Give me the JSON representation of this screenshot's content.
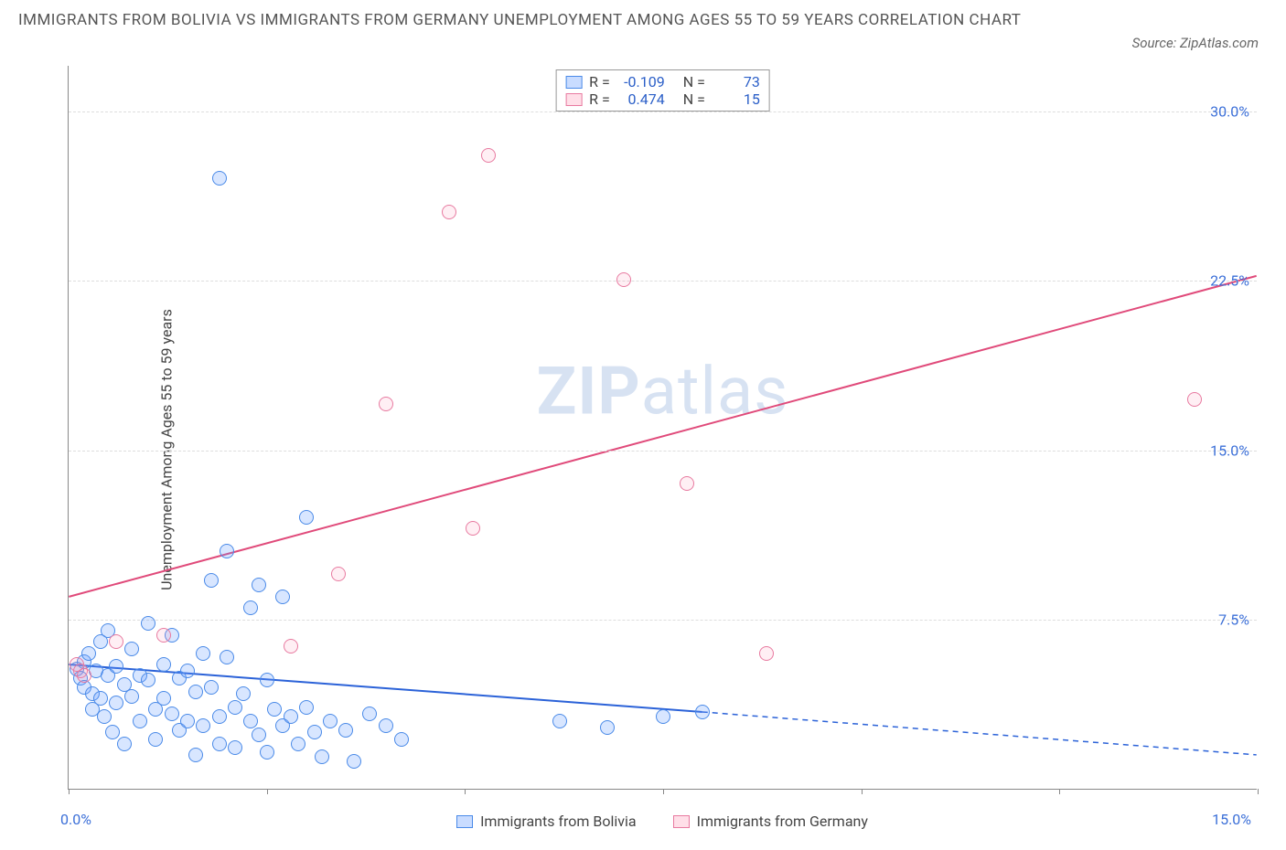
{
  "title": "IMMIGRANTS FROM BOLIVIA VS IMMIGRANTS FROM GERMANY UNEMPLOYMENT AMONG AGES 55 TO 59 YEARS CORRELATION CHART",
  "source": "Source: ZipAtlas.com",
  "watermark_a": "ZIP",
  "watermark_b": "atlas",
  "ylabel": "Unemployment Among Ages 55 to 59 years",
  "chart": {
    "type": "scatter",
    "xlim": [
      0,
      15
    ],
    "ylim": [
      0,
      32
    ],
    "x_ticks": [
      0,
      2.5,
      5,
      7.5,
      10,
      12.5,
      15
    ],
    "y_ticks": [
      7.5,
      15.0,
      22.5,
      30.0
    ],
    "y_tick_labels": [
      "7.5%",
      "15.0%",
      "22.5%",
      "30.0%"
    ],
    "x_left_label": "0.0%",
    "x_right_label": "15.0%",
    "background_color": "#ffffff",
    "grid_color": "#dddddd",
    "axis_color": "#888888",
    "label_color": "#3b6fd8",
    "series": [
      {
        "name": "Immigrants from Bolivia",
        "color_fill": "rgba(99,155,255,0.25)",
        "color_stroke": "#4a8ae8",
        "marker_size": 16,
        "R": "-0.109",
        "N": "73",
        "trend": {
          "x1": 0,
          "y1": 5.5,
          "x2": 8.0,
          "y2": 3.4,
          "x2_ext": 15.0,
          "y2_ext": 1.5,
          "stroke": "#2b62d8",
          "width": 2
        },
        "points": [
          [
            0.1,
            5.3
          ],
          [
            0.15,
            4.9
          ],
          [
            0.2,
            5.6
          ],
          [
            0.2,
            4.5
          ],
          [
            0.25,
            6.0
          ],
          [
            0.3,
            4.2
          ],
          [
            0.3,
            3.5
          ],
          [
            0.35,
            5.2
          ],
          [
            0.4,
            6.5
          ],
          [
            0.4,
            4.0
          ],
          [
            0.45,
            3.2
          ],
          [
            0.5,
            7.0
          ],
          [
            0.5,
            5.0
          ],
          [
            0.55,
            2.5
          ],
          [
            0.6,
            5.4
          ],
          [
            0.6,
            3.8
          ],
          [
            0.7,
            4.6
          ],
          [
            0.7,
            2.0
          ],
          [
            0.8,
            6.2
          ],
          [
            0.8,
            4.1
          ],
          [
            0.9,
            5.0
          ],
          [
            0.9,
            3.0
          ],
          [
            1.0,
            7.3
          ],
          [
            1.0,
            4.8
          ],
          [
            1.1,
            3.5
          ],
          [
            1.1,
            2.2
          ],
          [
            1.2,
            5.5
          ],
          [
            1.2,
            4.0
          ],
          [
            1.3,
            6.8
          ],
          [
            1.3,
            3.3
          ],
          [
            1.4,
            4.9
          ],
          [
            1.4,
            2.6
          ],
          [
            1.5,
            5.2
          ],
          [
            1.5,
            3.0
          ],
          [
            1.6,
            4.3
          ],
          [
            1.6,
            1.5
          ],
          [
            1.7,
            6.0
          ],
          [
            1.7,
            2.8
          ],
          [
            1.8,
            9.2
          ],
          [
            1.8,
            4.5
          ],
          [
            1.9,
            3.2
          ],
          [
            1.9,
            2.0
          ],
          [
            2.0,
            10.5
          ],
          [
            2.0,
            5.8
          ],
          [
            2.1,
            3.6
          ],
          [
            2.1,
            1.8
          ],
          [
            2.2,
            4.2
          ],
          [
            2.3,
            8.0
          ],
          [
            2.3,
            3.0
          ],
          [
            2.4,
            9.0
          ],
          [
            2.4,
            2.4
          ],
          [
            2.5,
            4.8
          ],
          [
            2.5,
            1.6
          ],
          [
            2.6,
            3.5
          ],
          [
            2.7,
            8.5
          ],
          [
            2.7,
            2.8
          ],
          [
            2.8,
            3.2
          ],
          [
            2.9,
            2.0
          ],
          [
            3.0,
            12.0
          ],
          [
            3.0,
            3.6
          ],
          [
            3.1,
            2.5
          ],
          [
            3.2,
            1.4
          ],
          [
            3.3,
            3.0
          ],
          [
            3.5,
            2.6
          ],
          [
            3.6,
            1.2
          ],
          [
            3.8,
            3.3
          ],
          [
            4.0,
            2.8
          ],
          [
            4.2,
            2.2
          ],
          [
            1.9,
            27.0
          ],
          [
            6.2,
            3.0
          ],
          [
            6.8,
            2.7
          ],
          [
            7.5,
            3.2
          ],
          [
            8.0,
            3.4
          ]
        ]
      },
      {
        "name": "Immigrants from Germany",
        "color_fill": "rgba(255,150,180,0.15)",
        "color_stroke": "#e87aa0",
        "marker_size": 16,
        "R": "0.474",
        "N": "15",
        "trend": {
          "x1": 0,
          "y1": 8.5,
          "x2": 15.0,
          "y2": 22.7,
          "stroke": "#e04a7a",
          "width": 2
        },
        "points": [
          [
            0.1,
            5.5
          ],
          [
            0.15,
            5.2
          ],
          [
            0.2,
            5.0
          ],
          [
            0.6,
            6.5
          ],
          [
            1.2,
            6.8
          ],
          [
            2.8,
            6.3
          ],
          [
            3.4,
            9.5
          ],
          [
            4.0,
            17.0
          ],
          [
            4.8,
            25.5
          ],
          [
            5.1,
            11.5
          ],
          [
            5.3,
            28.0
          ],
          [
            7.0,
            22.5
          ],
          [
            7.8,
            13.5
          ],
          [
            8.8,
            6.0
          ],
          [
            14.2,
            17.2
          ]
        ]
      }
    ]
  },
  "corr_box": {
    "rows": [
      {
        "swatch": "blue",
        "r_label": "R =",
        "r_val": "-0.109",
        "n_label": "N =",
        "n_val": "73"
      },
      {
        "swatch": "pink",
        "r_label": "R =",
        "r_val": "0.474",
        "n_label": "N =",
        "n_val": "15"
      }
    ]
  },
  "bottom_legend": {
    "a": "Immigrants from Bolivia",
    "b": "Immigrants from Germany"
  }
}
